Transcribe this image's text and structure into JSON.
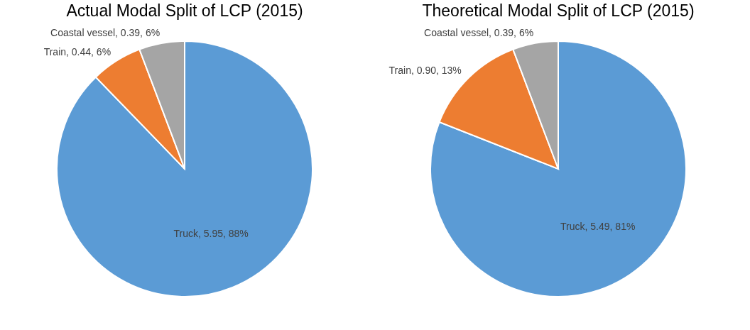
{
  "chart_data": [
    {
      "type": "pie",
      "title": "Actual Modal Split of LCP (2015)",
      "categories": [
        "Truck",
        "Train",
        "Coastal vessel"
      ],
      "values": [
        5.95,
        0.44,
        0.39
      ],
      "colors": [
        "#5b9bd5",
        "#ed7d31",
        "#a5a5a5"
      ],
      "value_labels": [
        "5.95, 88%",
        "0.44, 6%",
        "0.39, 6%"
      ],
      "legend": false
    },
    {
      "type": "pie",
      "title": "Theoretical Modal Split of LCP (2015)",
      "categories": [
        "Truck",
        "Train",
        "Coastal vessel"
      ],
      "values": [
        5.49,
        0.9,
        0.39
      ],
      "colors": [
        "#5b9bd5",
        "#ed7d31",
        "#a5a5a5"
      ],
      "value_labels": [
        "5.49, 81%",
        "0.90, 13%",
        "0.39, 6%"
      ],
      "legend": false
    }
  ]
}
